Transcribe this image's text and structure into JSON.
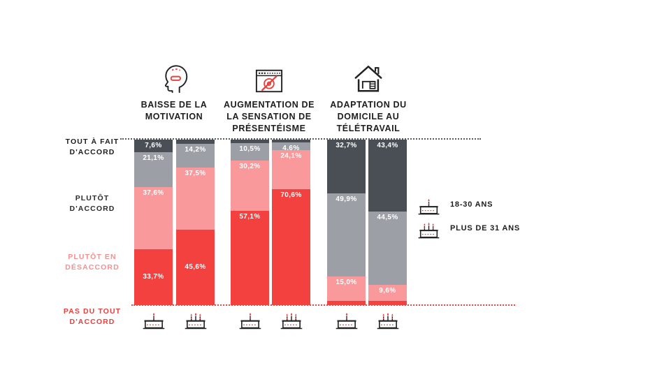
{
  "colors": {
    "levels": {
      "TOUT À FAIT D'ACCORD": "#4a4f55",
      "PLUTÔT D'ACCORD": "#9ca0a6",
      "PLUTÔT EN DÉSACCORD": "#f9999c",
      "PAS DU TOUT D'ACCORD": "#f3413f"
    },
    "accent_red": "#e8413c",
    "baseline_red": "#f3413f",
    "gridline_gray": "#55595e",
    "label_white": "#ffffff"
  },
  "axis": {
    "levels": [
      {
        "id": "tout_a_fait",
        "lines": [
          "TOUT À FAIT",
          "D'ACCORD"
        ],
        "color": "#1b1b1b"
      },
      {
        "id": "plutot_accord",
        "lines": [
          "PLUTÔT",
          "D'ACCORD"
        ],
        "color": "#2b2b2b"
      },
      {
        "id": "plutot_desaccord",
        "lines": [
          "PLUTÔT EN",
          "DÉSACCORD"
        ],
        "color": "#f4908f"
      },
      {
        "id": "pas_du_tout",
        "lines": [
          "PAS DU TOUT",
          "D'ACCORD"
        ],
        "color": "#e7403d"
      }
    ]
  },
  "legend": {
    "items": [
      {
        "icon": "cake-one-candle-icon",
        "label": "18-30 ANS"
      },
      {
        "icon": "cake-three-candles-icon",
        "label": "PLUS DE 31 ANS"
      }
    ]
  },
  "chart_data": {
    "type": "bar",
    "stacked": true,
    "unit": "%",
    "ylim": [
      0,
      100
    ],
    "grid": "dotted top (100%) and bottom (0%) lines only",
    "legend_position": "right",
    "levels_order_top_to_bottom": [
      "TOUT À FAIT D'ACCORD",
      "PLUTÔT D'ACCORD",
      "PLUTÔT EN DÉSACCORD",
      "PAS DU TOUT D'ACCORD"
    ],
    "groups": [
      {
        "icon": "demotivation-head-icon",
        "title_lines": [
          "BAISSE DE LA",
          "MOTIVATION"
        ],
        "bars": [
          {
            "age_group": "18-30 ANS",
            "segments": [
              {
                "level": "TOUT À FAIT D'ACCORD",
                "value": 7.6,
                "label": "7,6%"
              },
              {
                "level": "PLUTÔT D'ACCORD",
                "value": 21.1,
                "label": "21,1%"
              },
              {
                "level": "PLUTÔT EN DÉSACCORD",
                "value": 37.6,
                "label": "37,6%"
              },
              {
                "level": "PAS DU TOUT D'ACCORD",
                "value": 33.7,
                "label": "33,7%",
                "label_align": "center"
              }
            ]
          },
          {
            "age_group": "PLUS DE 31 ANS",
            "segments": [
              {
                "level": "TOUT À FAIT D'ACCORD",
                "value": 2.7,
                "label": ""
              },
              {
                "level": "PLUTÔT D'ACCORD",
                "value": 14.2,
                "label": "14,2%"
              },
              {
                "level": "PLUTÔT EN DÉSACCORD",
                "value": 37.5,
                "label": "37,5%"
              },
              {
                "level": "PAS DU TOUT D'ACCORD",
                "value": 45.6,
                "label": "45,6%",
                "label_align": "center"
              }
            ]
          }
        ]
      },
      {
        "icon": "no-webcam-browser-icon",
        "title_lines": [
          "AUGMENTATION DE",
          "LA SENSATION DE",
          "PRÉSENTÉISME"
        ],
        "bars": [
          {
            "age_group": "18-30 ANS",
            "segments": [
              {
                "level": "TOUT À FAIT D'ACCORD",
                "value": 2.2,
                "label": ""
              },
              {
                "level": "PLUTÔT D'ACCORD",
                "value": 10.5,
                "label": "10,5%"
              },
              {
                "level": "PLUTÔT EN DÉSACCORD",
                "value": 30.2,
                "label": "30,2%"
              },
              {
                "level": "PAS DU TOUT D'ACCORD",
                "value": 57.1,
                "label": "57,1%"
              }
            ]
          },
          {
            "age_group": "PLUS DE 31 ANS",
            "segments": [
              {
                "level": "TOUT À FAIT D'ACCORD",
                "value": 0.7,
                "label": ""
              },
              {
                "level": "PLUTÔT D'ACCORD",
                "value": 4.6,
                "label": "4,6%"
              },
              {
                "level": "PLUTÔT EN DÉSACCORD",
                "value": 24.1,
                "label": "24,1%"
              },
              {
                "level": "PAS DU TOUT D'ACCORD",
                "value": 70.6,
                "label": "70,6%"
              }
            ]
          }
        ]
      },
      {
        "icon": "home-office-house-icon",
        "title_lines": [
          "ADAPTATION DU",
          "DOMICILE AU",
          "TÉLÉTRAVAIL"
        ],
        "bars": [
          {
            "age_group": "18-30 ANS",
            "segments": [
              {
                "level": "TOUT À FAIT D'ACCORD",
                "value": 32.7,
                "label": "32,7%"
              },
              {
                "level": "PLUTÔT D'ACCORD",
                "value": 49.9,
                "label": "49,9%"
              },
              {
                "level": "PLUTÔT EN DÉSACCORD",
                "value": 15.0,
                "label": "15,0%"
              },
              {
                "level": "PAS DU TOUT D'ACCORD",
                "value": 2.4,
                "label": ""
              }
            ]
          },
          {
            "age_group": "PLUS DE 31 ANS",
            "segments": [
              {
                "level": "TOUT À FAIT D'ACCORD",
                "value": 43.4,
                "label": "43,4%"
              },
              {
                "level": "PLUTÔT D'ACCORD",
                "value": 44.5,
                "label": "44,5%"
              },
              {
                "level": "PLUTÔT EN DÉSACCORD",
                "value": 9.6,
                "label": "9,6%"
              },
              {
                "level": "PAS DU TOUT D'ACCORD",
                "value": 2.5,
                "label": ""
              }
            ]
          }
        ]
      }
    ]
  }
}
